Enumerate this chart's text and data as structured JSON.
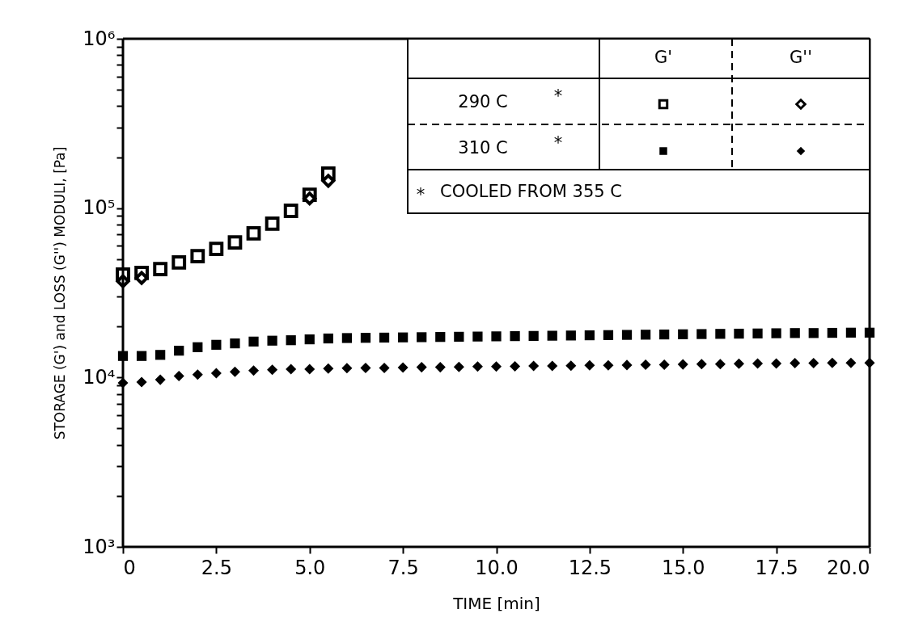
{
  "chart_data": {
    "type": "scatter",
    "xlabel": "TIME [min]",
    "ylabel": "STORAGE (G') and LOSS (G'') MODULI, [Pa]",
    "log": "y",
    "xlim": [
      0,
      20
    ],
    "ylim": [
      1000,
      1000000
    ],
    "xticks": [
      0,
      {
        "value": 2.5,
        "label": "2.5"
      },
      {
        "value": 5,
        "label": "5.0"
      },
      {
        "value": 7.5,
        "label": "7.5"
      },
      {
        "value": 10,
        "label": "10.0"
      },
      {
        "value": 12.5,
        "label": "12.5"
      },
      {
        "value": 15,
        "label": "15.0"
      },
      {
        "value": 17.5,
        "label": "17.5"
      },
      {
        "value": 20,
        "label": "20.0"
      }
    ],
    "yticks": [
      {
        "value": 1000,
        "label": "10³"
      },
      {
        "value": 2000,
        "label": null
      },
      {
        "value": 3000,
        "label": null
      },
      {
        "value": 4000,
        "label": null
      },
      {
        "value": 5000,
        "label": null
      },
      {
        "value": 6000,
        "label": null
      },
      {
        "value": 7000,
        "label": null
      },
      {
        "value": 8000,
        "label": null
      },
      {
        "value": 9000,
        "label": null
      },
      {
        "value": 10000,
        "label": "10⁴"
      },
      {
        "value": 20000,
        "label": null
      },
      {
        "value": 30000,
        "label": null
      },
      {
        "value": 40000,
        "label": null
      },
      {
        "value": 50000,
        "label": null
      },
      {
        "value": 60000,
        "label": null
      },
      {
        "value": 70000,
        "label": null
      },
      {
        "value": 80000,
        "label": null
      },
      {
        "value": 90000,
        "label": null
      },
      {
        "value": 100000,
        "label": "10⁵"
      },
      {
        "value": 200000,
        "label": null
      },
      {
        "value": 300000,
        "label": null
      },
      {
        "value": 400000,
        "label": null
      },
      {
        "value": 500000,
        "label": null
      },
      {
        "value": 600000,
        "label": null
      },
      {
        "value": 700000,
        "label": null
      },
      {
        "value": 800000,
        "label": null
      },
      {
        "value": 900000,
        "label": null
      },
      {
        "value": 1000000,
        "label": "10⁶"
      }
    ],
    "grid": false,
    "annotations": [
      "G'",
      "G''",
      "290 C",
      "*",
      "310 C",
      "*",
      "*",
      "COOLED FROM 355 C"
    ],
    "series": [
      {
        "marker": "square",
        "color": "#000000",
        "x": [
          0,
          0.5,
          1,
          1.5,
          2,
          2.5,
          3,
          3.5,
          4,
          4.5,
          5,
          5.5
        ],
        "values": [
          40500,
          41400,
          43700,
          47800,
          52100,
          57500,
          62800,
          70900,
          80900,
          96400,
          120000,
          160000
        ]
      },
      {
        "marker": "diamond",
        "color": "#000000",
        "x": [
          0,
          0.5,
          1,
          1.5,
          2,
          2.5,
          3,
          3.5,
          4,
          4.5,
          5,
          5.5
        ],
        "values": [
          37000,
          38700,
          null,
          null,
          null,
          null,
          null,
          null,
          null,
          null,
          114000,
          145000
        ]
      },
      {
        "marker": "square",
        "color": "#000000",
        "x": [
          0,
          0.5,
          1,
          1.5,
          2,
          2.5,
          3,
          3.5,
          4,
          4.5,
          5,
          5.5,
          6,
          6.5,
          7,
          7.5,
          8,
          8.5,
          9,
          9.5,
          10,
          10.5,
          11,
          11.5,
          12,
          12.5,
          13,
          13.5,
          14,
          14.5,
          15,
          15.5,
          16,
          16.5,
          17,
          17.5,
          18,
          18.5,
          19,
          19.5,
          20
        ],
        "values": [
          13400,
          13400,
          13600,
          14400,
          15100,
          15600,
          15900,
          16300,
          16500,
          16600,
          16800,
          17000,
          17100,
          17150,
          17200,
          17250,
          17300,
          17350,
          17400,
          17450,
          17500,
          17550,
          17600,
          17650,
          17700,
          17750,
          17800,
          17850,
          17900,
          17950,
          18000,
          18050,
          18100,
          18150,
          18200,
          18250,
          18300,
          18300,
          18350,
          18400,
          18400
        ]
      },
      {
        "marker": "diamond",
        "color": "#000000",
        "x": [
          0,
          0.5,
          1,
          1.5,
          2,
          2.5,
          3,
          3.5,
          4,
          4.5,
          5,
          5.5,
          6,
          6.5,
          7,
          7.5,
          8,
          8.5,
          9,
          9.5,
          10,
          10.5,
          11,
          11.5,
          12,
          12.5,
          13,
          13.5,
          14,
          14.5,
          15,
          15.5,
          16,
          16.5,
          17,
          17.5,
          18,
          18.5,
          19,
          19.5,
          20
        ],
        "values": [
          9300,
          9400,
          9700,
          10200,
          10400,
          10600,
          10800,
          11000,
          11100,
          11200,
          11200,
          11300,
          11350,
          11400,
          11400,
          11450,
          11500,
          11500,
          11550,
          11600,
          11600,
          11650,
          11700,
          11700,
          11750,
          11800,
          11800,
          11850,
          11900,
          11900,
          11950,
          12000,
          12000,
          12050,
          12100,
          12100,
          12150,
          12150,
          12200,
          12200,
          12200
        ]
      }
    ]
  }
}
